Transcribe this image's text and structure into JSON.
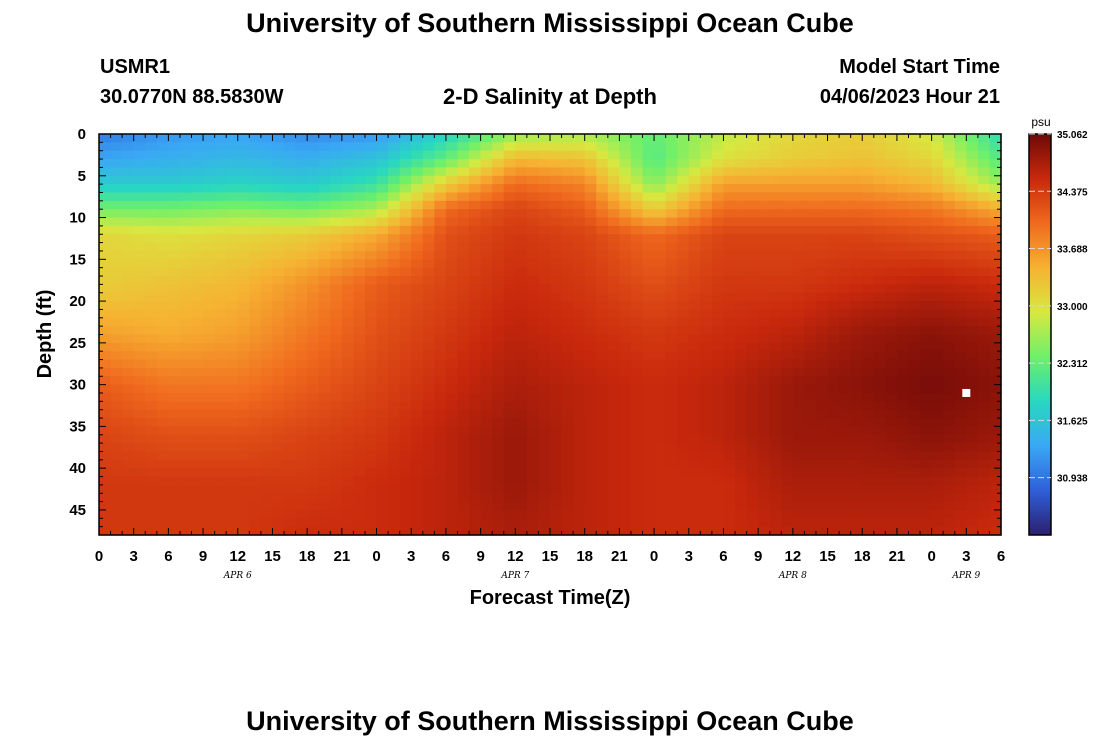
{
  "header": {
    "title": "University of Southern Mississippi Ocean Cube",
    "station_id": "USMR1",
    "coords": "30.0770N  88.5830W",
    "subtitle": "2-D Salinity at Depth",
    "model_start_label": "Model Start Time",
    "model_start_value": "04/06/2023 Hour 21"
  },
  "footer": {
    "title": "University of Southern Mississippi Ocean Cube"
  },
  "colors": {
    "colormap": [
      "#2b1f6e",
      "#2f5fd8",
      "#3aa8f5",
      "#28d8c0",
      "#6ef06a",
      "#d8e840",
      "#f6b232",
      "#f06a1e",
      "#c8280c",
      "#6e0a08"
    ]
  },
  "chart_data": {
    "type": "heatmap",
    "xlabel": "Forecast Time(Z)",
    "ylabel": "Depth (ft)",
    "x_ticks": [
      "0",
      "3",
      "6",
      "9",
      "12",
      "15",
      "18",
      "21",
      "0",
      "3",
      "6",
      "9",
      "12",
      "15",
      "18",
      "21",
      "0",
      "3",
      "6",
      "9",
      "12",
      "15",
      "18",
      "21",
      "0",
      "3",
      "6"
    ],
    "x_range": [
      0,
      78
    ],
    "date_labels": [
      {
        "label": "APR 6",
        "hour": 12
      },
      {
        "label": "APR 7",
        "hour": 36
      },
      {
        "label": "APR 8",
        "hour": 60
      },
      {
        "label": "APR 9",
        "hour": 75
      }
    ],
    "y_ticks": [
      "0",
      "5",
      "10",
      "15",
      "20",
      "25",
      "30",
      "35",
      "40",
      "45"
    ],
    "y_range": [
      0,
      48
    ],
    "colorbar": {
      "unit": "psu",
      "min": 30.25,
      "max": 35.062,
      "tick_values": [
        35.062,
        34.375,
        33.688,
        33.0,
        32.312,
        31.625,
        30.938
      ],
      "tick_labels": [
        "35.062",
        "34.375",
        "33.688",
        "33.000",
        "32.312",
        "31.625",
        "30.938"
      ]
    },
    "depths": [
      0,
      3,
      6,
      9,
      12,
      18,
      24,
      30,
      36,
      42,
      48
    ],
    "hours": [
      0,
      6,
      12,
      18,
      24,
      30,
      36,
      42,
      48,
      54,
      60,
      66,
      72,
      78
    ],
    "salinity": [
      [
        31.0,
        31.2,
        31.3,
        31.1,
        31.2,
        31.8,
        32.6,
        32.7,
        32.3,
        32.8,
        33.1,
        33.2,
        32.9,
        31.9
      ],
      [
        31.3,
        31.4,
        31.5,
        31.4,
        31.6,
        32.3,
        33.4,
        33.3,
        32.2,
        33.0,
        33.2,
        33.3,
        33.1,
        32.2
      ],
      [
        31.7,
        31.7,
        31.8,
        31.7,
        32.0,
        33.2,
        34.0,
        33.8,
        32.5,
        33.6,
        33.6,
        33.6,
        33.4,
        32.6
      ],
      [
        32.4,
        32.4,
        32.5,
        32.4,
        32.7,
        34.0,
        34.3,
        34.1,
        33.2,
        34.0,
        34.0,
        34.0,
        33.9,
        33.5
      ],
      [
        33.1,
        33.0,
        33.1,
        33.2,
        33.5,
        34.2,
        34.4,
        34.3,
        34.0,
        34.3,
        34.3,
        34.3,
        34.2,
        34.1
      ],
      [
        33.2,
        33.3,
        33.4,
        33.7,
        34.1,
        34.3,
        34.5,
        34.4,
        34.2,
        34.4,
        34.4,
        34.5,
        34.6,
        34.5
      ],
      [
        33.6,
        33.5,
        33.6,
        33.9,
        34.2,
        34.4,
        34.6,
        34.5,
        34.4,
        34.5,
        34.6,
        34.8,
        34.9,
        34.8
      ],
      [
        34.1,
        33.9,
        33.9,
        34.1,
        34.3,
        34.5,
        34.7,
        34.6,
        34.5,
        34.6,
        34.8,
        34.9,
        35.0,
        34.9
      ],
      [
        34.3,
        34.2,
        34.2,
        34.3,
        34.4,
        34.6,
        34.8,
        34.6,
        34.5,
        34.6,
        34.8,
        34.8,
        34.9,
        34.8
      ],
      [
        34.4,
        34.4,
        34.4,
        34.4,
        34.5,
        34.6,
        34.8,
        34.6,
        34.5,
        34.5,
        34.7,
        34.7,
        34.7,
        34.6
      ],
      [
        34.4,
        34.4,
        34.4,
        34.5,
        34.5,
        34.6,
        34.7,
        34.6,
        34.5,
        34.5,
        34.6,
        34.6,
        34.6,
        34.5
      ]
    ],
    "marker": {
      "hour": 75,
      "depth": 31
    }
  }
}
